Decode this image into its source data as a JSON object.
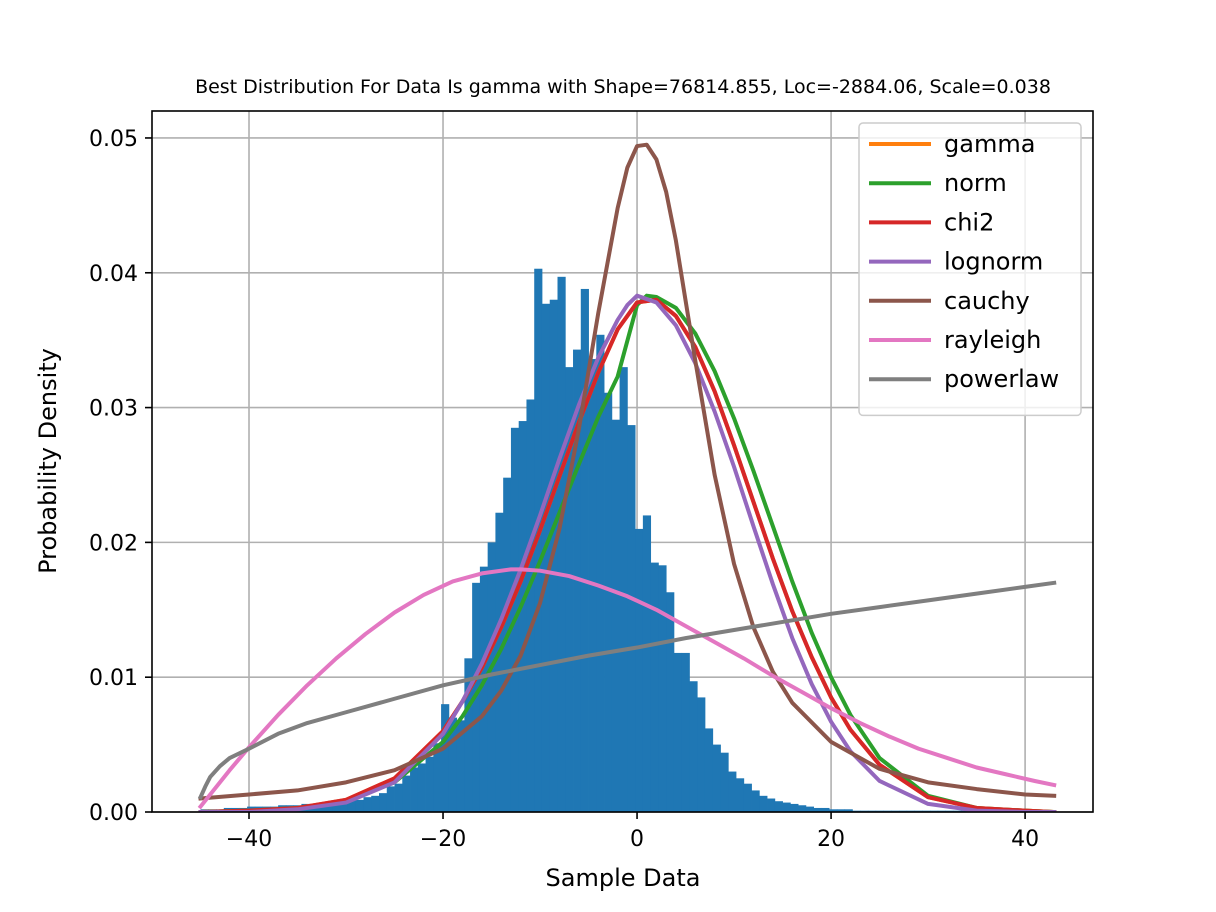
{
  "chart_data": {
    "type": "histogram+line",
    "title": "Best Distribution For Data Is gamma with Shape=76814.855, Loc=-2884.06, Scale=0.038",
    "xlabel": "Sample Data",
    "ylabel": "Probability Density",
    "xlim": [
      -50,
      47
    ],
    "ylim": [
      0,
      0.052
    ],
    "xticks": [
      -40,
      -20,
      0,
      20,
      40
    ],
    "xtick_labels": [
      "−40",
      "−20",
      "0",
      "20",
      "40"
    ],
    "yticks": [
      0,
      0.01,
      0.02,
      0.03,
      0.04,
      0.05
    ],
    "ytick_labels": [
      "0.00",
      "0.01",
      "0.02",
      "0.03",
      "0.04",
      "0.05"
    ],
    "grid": true,
    "legend_position": "top-right",
    "histogram": {
      "color": "#1f77b4",
      "bin_start": -45,
      "bin_width": 0.8,
      "values": [
        0.0002,
        0.0002,
        0.0002,
        0.0003,
        0.0003,
        0.0003,
        0.0004,
        0.0004,
        0.0004,
        0.0004,
        0.0005,
        0.0005,
        0.0005,
        0.0006,
        0.0006,
        0.0007,
        0.0007,
        0.0007,
        0.0008,
        0.0009,
        0.0009,
        0.0011,
        0.0012,
        0.0014,
        0.0019,
        0.0021,
        0.0027,
        0.0033,
        0.0036,
        0.0041,
        0.0051,
        0.008,
        0.007,
        0.0068,
        0.0114,
        0.017,
        0.0182,
        0.02,
        0.0222,
        0.0248,
        0.0285,
        0.029,
        0.0306,
        0.0403,
        0.0377,
        0.038,
        0.0397,
        0.033,
        0.0343,
        0.0388,
        0.0336,
        0.0354,
        0.0311,
        0.0291,
        0.033,
        0.0287,
        0.021,
        0.022,
        0.0185,
        0.0183,
        0.0163,
        0.0118,
        0.0118,
        0.0097,
        0.0085,
        0.0062,
        0.005,
        0.0044,
        0.003,
        0.0025,
        0.0021,
        0.0016,
        0.0012,
        0.001,
        0.0008,
        0.0007,
        0.0006,
        0.0005,
        0.0004,
        0.0003,
        0.0003,
        0.0002,
        0.0002,
        0.0002,
        0.0001,
        0.0001,
        0.0001,
        0.0001,
        0.0001,
        0.0001,
        0.0001,
        0.0001,
        0.0001,
        0.0001,
        0.0001,
        0.0001,
        0.0001,
        0.0001,
        0.0001,
        0.0001,
        0.0001,
        0.0001,
        0.0001,
        0.0001,
        0.0001,
        0.0001,
        0.0001,
        0.0001,
        0.0001,
        0.0001
      ]
    },
    "series": [
      {
        "name": "gamma",
        "color": "#ff7f0e",
        "x": [
          -45,
          -40,
          -35,
          -30,
          -25,
          -20,
          -18,
          -16,
          -14,
          -12,
          -10,
          -8,
          -6,
          -4,
          -2,
          0,
          2,
          4,
          6,
          8,
          10,
          12,
          14,
          16,
          18,
          20,
          22,
          25,
          30,
          35,
          40,
          43
        ],
        "y": [
          0.0,
          0.0001,
          0.0003,
          0.0009,
          0.0025,
          0.006,
          0.0082,
          0.0107,
          0.0137,
          0.0171,
          0.0209,
          0.0249,
          0.0289,
          0.0326,
          0.0358,
          0.0378,
          0.038,
          0.0368,
          0.0345,
          0.0312,
          0.0272,
          0.023,
          0.0188,
          0.0149,
          0.0115,
          0.0085,
          0.0061,
          0.0035,
          0.0011,
          0.0003,
          0.0001,
          0.0
        ]
      },
      {
        "name": "norm",
        "color": "#2ca02c",
        "x": [
          -45,
          -40,
          -35,
          -30,
          -25,
          -20,
          -18,
          -16,
          -14,
          -12,
          -10,
          -8,
          -6,
          -4,
          -2,
          0,
          1,
          2,
          4,
          6,
          8,
          10,
          12,
          14,
          16,
          18,
          20,
          22,
          25,
          30,
          35,
          40,
          43
        ],
        "y": [
          0.0,
          0.0001,
          0.0003,
          0.0008,
          0.0022,
          0.0052,
          0.0071,
          0.0094,
          0.0121,
          0.0152,
          0.0186,
          0.0222,
          0.0258,
          0.0293,
          0.0323,
          0.0376,
          0.0383,
          0.0382,
          0.0374,
          0.0355,
          0.0327,
          0.0292,
          0.0253,
          0.0212,
          0.0171,
          0.0133,
          0.01,
          0.0072,
          0.004,
          0.0012,
          0.0003,
          0.0001,
          0.0
        ]
      },
      {
        "name": "chi2",
        "color": "#d62728",
        "x": [
          -45,
          -40,
          -35,
          -30,
          -25,
          -20,
          -18,
          -16,
          -14,
          -12,
          -10,
          -8,
          -6,
          -4,
          -2,
          0,
          2,
          4,
          6,
          8,
          10,
          12,
          14,
          16,
          18,
          20,
          22,
          25,
          30,
          35,
          40,
          43
        ],
        "y": [
          0.0,
          0.0001,
          0.0003,
          0.0009,
          0.0025,
          0.006,
          0.0082,
          0.0107,
          0.0137,
          0.0171,
          0.0209,
          0.0249,
          0.0289,
          0.0326,
          0.0358,
          0.0378,
          0.038,
          0.0368,
          0.0345,
          0.0312,
          0.0272,
          0.023,
          0.0188,
          0.0149,
          0.0115,
          0.0085,
          0.0061,
          0.0035,
          0.0011,
          0.0003,
          0.0001,
          0.0
        ]
      },
      {
        "name": "lognorm",
        "color": "#9467bd",
        "x": [
          -45,
          -40,
          -35,
          -30,
          -25,
          -20,
          -18,
          -16,
          -14,
          -12,
          -10,
          -8,
          -6,
          -4,
          -2,
          -1,
          0,
          2,
          4,
          6,
          8,
          10,
          12,
          14,
          16,
          18,
          20,
          22,
          25,
          30,
          35,
          40,
          43
        ],
        "y": [
          0.0,
          0.0,
          0.0002,
          0.0007,
          0.0022,
          0.0058,
          0.0082,
          0.011,
          0.0143,
          0.018,
          0.022,
          0.0262,
          0.0302,
          0.0337,
          0.0365,
          0.0376,
          0.0383,
          0.0378,
          0.0361,
          0.0333,
          0.0297,
          0.0256,
          0.0212,
          0.0169,
          0.0129,
          0.0095,
          0.0067,
          0.0045,
          0.0023,
          0.0006,
          0.0001,
          0.0,
          0.0
        ]
      },
      {
        "name": "cauchy",
        "color": "#8c564b",
        "x": [
          -45,
          -40,
          -35,
          -30,
          -25,
          -20,
          -16,
          -14,
          -12,
          -10,
          -8,
          -6,
          -4,
          -2,
          -1,
          0,
          1,
          2,
          3,
          4,
          6,
          8,
          10,
          12,
          14,
          16,
          20,
          25,
          30,
          35,
          40,
          43
        ],
        "y": [
          0.001,
          0.0013,
          0.0016,
          0.0022,
          0.0031,
          0.0047,
          0.0071,
          0.009,
          0.0116,
          0.0155,
          0.021,
          0.0284,
          0.037,
          0.0448,
          0.0478,
          0.0494,
          0.0495,
          0.0484,
          0.046,
          0.0424,
          0.0335,
          0.025,
          0.0184,
          0.0137,
          0.0104,
          0.0081,
          0.0052,
          0.0032,
          0.0022,
          0.0017,
          0.0013,
          0.0012
        ]
      },
      {
        "name": "rayleigh",
        "color": "#e377c2",
        "x": [
          -45,
          -42,
          -40,
          -37,
          -34,
          -31,
          -28,
          -25,
          -22,
          -19,
          -16,
          -13,
          -12,
          -10,
          -7,
          -4,
          -1,
          2,
          5,
          8,
          11,
          14,
          17,
          20,
          23,
          26,
          29,
          32,
          35,
          38,
          41,
          43
        ],
        "y": [
          0.0004,
          0.0031,
          0.0048,
          0.0072,
          0.0094,
          0.0114,
          0.0132,
          0.0148,
          0.0161,
          0.0171,
          0.0177,
          0.018,
          0.018,
          0.0179,
          0.0175,
          0.0168,
          0.016,
          0.015,
          0.0138,
          0.0126,
          0.0114,
          0.0101,
          0.0089,
          0.0077,
          0.0066,
          0.0056,
          0.0047,
          0.004,
          0.0033,
          0.0028,
          0.0023,
          0.002
        ]
      },
      {
        "name": "powerlaw",
        "color": "#7f7f7f",
        "x": [
          -45,
          -44.5,
          -44,
          -43,
          -42,
          -40,
          -37,
          -34,
          -30,
          -25,
          -20,
          -15,
          -10,
          -5,
          0,
          5,
          10,
          15,
          20,
          25,
          30,
          35,
          40,
          43
        ],
        "y": [
          0.0011,
          0.0019,
          0.0026,
          0.0034,
          0.004,
          0.0047,
          0.0058,
          0.0066,
          0.0074,
          0.0084,
          0.0094,
          0.0102,
          0.0109,
          0.0116,
          0.0122,
          0.0129,
          0.0135,
          0.0141,
          0.0147,
          0.0152,
          0.0157,
          0.0162,
          0.0167,
          0.017
        ]
      }
    ]
  }
}
